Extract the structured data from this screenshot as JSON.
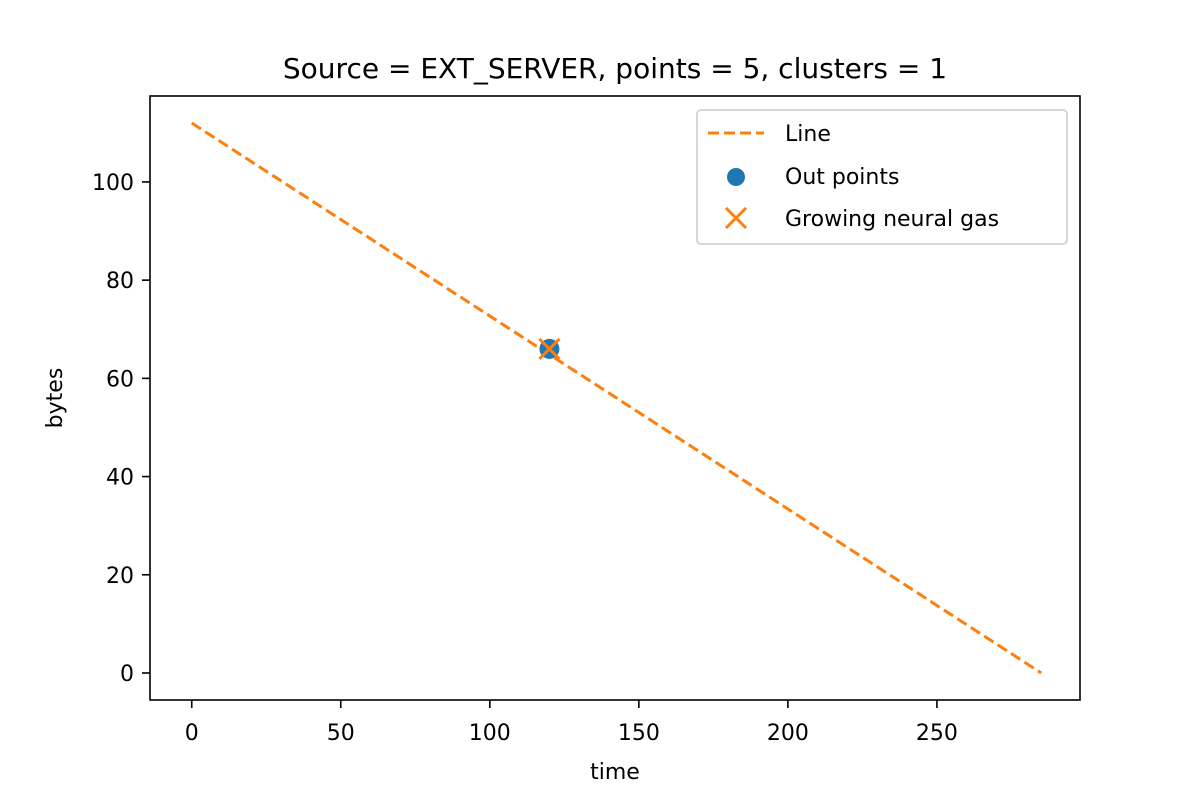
{
  "chart_data": {
    "type": "scatter",
    "title": "Source = EXT_SERVER, points = 5, clusters = 1",
    "xlabel": "time",
    "ylabel": "bytes",
    "xlim": [
      -14,
      298
    ],
    "ylim": [
      -5.5,
      117.5
    ],
    "xticks": [
      0,
      50,
      100,
      150,
      200,
      250
    ],
    "yticks": [
      0,
      20,
      40,
      60,
      80,
      100
    ],
    "grid": false,
    "legend_position": "upper-right",
    "series": [
      {
        "name": "Line",
        "kind": "line",
        "style": "dashed",
        "color": "#ff7f0e",
        "x": [
          0,
          285
        ],
        "y": [
          112,
          0
        ]
      },
      {
        "name": "Out points",
        "kind": "scatter",
        "marker": "circle",
        "color": "#1f77b4",
        "x": [
          120
        ],
        "y": [
          66
        ]
      },
      {
        "name": "Growing neural gas",
        "kind": "scatter",
        "marker": "x",
        "color": "#ff7f0e",
        "x": [
          120
        ],
        "y": [
          66
        ]
      }
    ]
  }
}
